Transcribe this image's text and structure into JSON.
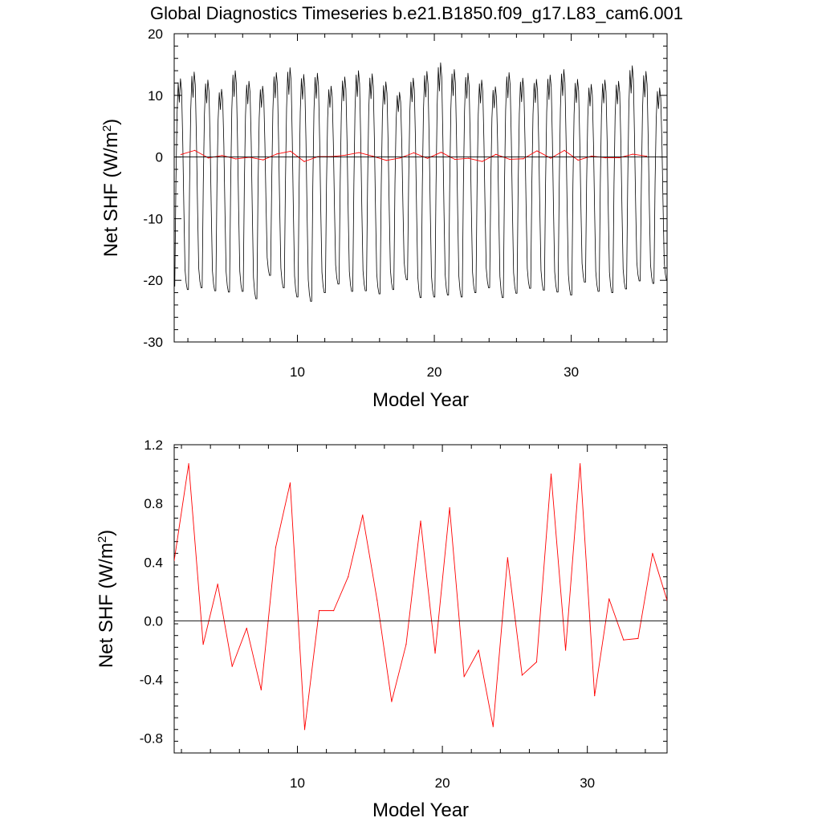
{
  "title": "Global Diagnostics Timeseries b.e21.B1850.f09_g17.L83_cam6.001",
  "colors": {
    "monthly": "#000000",
    "annual": "#ff0000",
    "zero_line": "#000000"
  },
  "chart_data": [
    {
      "type": "line",
      "xlabel": "Model Year",
      "ylabel_main": "Net SHF (W/m",
      "ylabel_sup": "2",
      "ylabel_tail": ")",
      "xlim": [
        1,
        37
      ],
      "ylim": [
        -30,
        20
      ],
      "x_ticks": [
        10,
        20,
        30
      ],
      "y_ticks": [
        -30,
        -20,
        -10,
        0,
        10,
        20
      ],
      "grid": false,
      "reference_line_y": 0,
      "series": [
        {
          "role": "monthly",
          "color": "#000000",
          "x_start": 1.042,
          "x_step": 0.08333,
          "annual_max": [
            12.7,
            13.8,
            12.5,
            11.0,
            14.0,
            12.3,
            11.5,
            13.7,
            14.5,
            13.4,
            13.6,
            11.5,
            13.0,
            14.0,
            13.5,
            12.2,
            10.5,
            12.8,
            13.9,
            15.3,
            14.2,
            13.6,
            12.5,
            11.4,
            13.7,
            12.8,
            12.6,
            13.3,
            14.2,
            12.6,
            11.8,
            12.5,
            12.3,
            14.8,
            13.9,
            11.2,
            8.6
          ],
          "annual_min": [
            -21.0,
            -21.5,
            -21.2,
            -21.7,
            -21.9,
            -21.8,
            -23.0,
            -19.2,
            -21.2,
            -22.7,
            -23.4,
            -22.0,
            -20.6,
            -21.8,
            -21.7,
            -22.2,
            -21.5,
            -19.9,
            -22.8,
            -22.7,
            -22.4,
            -22.7,
            -22.0,
            -21.2,
            -22.8,
            -22.1,
            -21.3,
            -21.6,
            -21.9,
            -22.4,
            -20.3,
            -21.8,
            -22.0,
            -21.4,
            -20.1,
            -20.5,
            -20.0
          ]
        },
        {
          "role": "annual",
          "color": "#ff0000",
          "x": [
            1.5,
            2.5,
            3.5,
            4.5,
            5.5,
            6.5,
            7.5,
            8.5,
            9.5,
            10.5,
            11.5,
            12.5,
            13.5,
            14.5,
            15.5,
            16.5,
            17.5,
            18.5,
            19.5,
            20.5,
            21.5,
            22.5,
            23.5,
            24.5,
            25.5,
            26.5,
            27.5,
            28.5,
            29.5,
            30.5,
            31.5,
            32.5,
            33.5,
            34.5,
            35.5
          ],
          "y": [
            0.41,
            1.07,
            -0.16,
            0.25,
            -0.31,
            -0.05,
            -0.47,
            0.5,
            0.94,
            -0.74,
            0.07,
            0.07,
            0.3,
            0.72,
            0.14,
            -0.55,
            -0.16,
            0.68,
            -0.22,
            0.77,
            -0.38,
            -0.2,
            -0.72,
            0.43,
            -0.37,
            -0.28,
            1.0,
            -0.2,
            1.07,
            -0.51,
            0.15,
            -0.13,
            -0.12,
            0.46,
            0.14
          ]
        }
      ]
    },
    {
      "type": "line",
      "xlabel": "Model Year",
      "ylabel_main": "Net SHF (W/m",
      "ylabel_sup": "2",
      "ylabel_tail": ")",
      "xlim": [
        1.5,
        35.5
      ],
      "ylim": [
        -0.9,
        1.2
      ],
      "x_ticks": [
        10,
        20,
        30
      ],
      "y_ticks": [
        -0.8,
        -0.4,
        0.0,
        0.4,
        0.8,
        1.2
      ],
      "y_tick_labels": [
        "-0.8",
        "-0.4",
        "0.0",
        "0.4",
        "0.8",
        "1.2"
      ],
      "grid": false,
      "reference_line_y": 0,
      "series": [
        {
          "role": "annual",
          "color": "#ff0000",
          "x": [
            1.5,
            2.5,
            3.5,
            4.5,
            5.5,
            6.5,
            7.5,
            8.5,
            9.5,
            10.5,
            11.5,
            12.5,
            13.5,
            14.5,
            15.5,
            16.5,
            17.5,
            18.5,
            19.5,
            20.5,
            21.5,
            22.5,
            23.5,
            24.5,
            25.5,
            26.5,
            27.5,
            28.5,
            29.5,
            30.5,
            31.5,
            32.5,
            33.5,
            34.5,
            35.5
          ],
          "y": [
            0.41,
            1.07,
            -0.16,
            0.25,
            -0.31,
            -0.05,
            -0.47,
            0.5,
            0.94,
            -0.74,
            0.07,
            0.07,
            0.3,
            0.72,
            0.14,
            -0.55,
            -0.16,
            0.68,
            -0.22,
            0.77,
            -0.38,
            -0.2,
            -0.72,
            0.43,
            -0.37,
            -0.28,
            1.0,
            -0.2,
            1.07,
            -0.51,
            0.15,
            -0.13,
            -0.12,
            0.46,
            0.14
          ]
        }
      ]
    }
  ]
}
